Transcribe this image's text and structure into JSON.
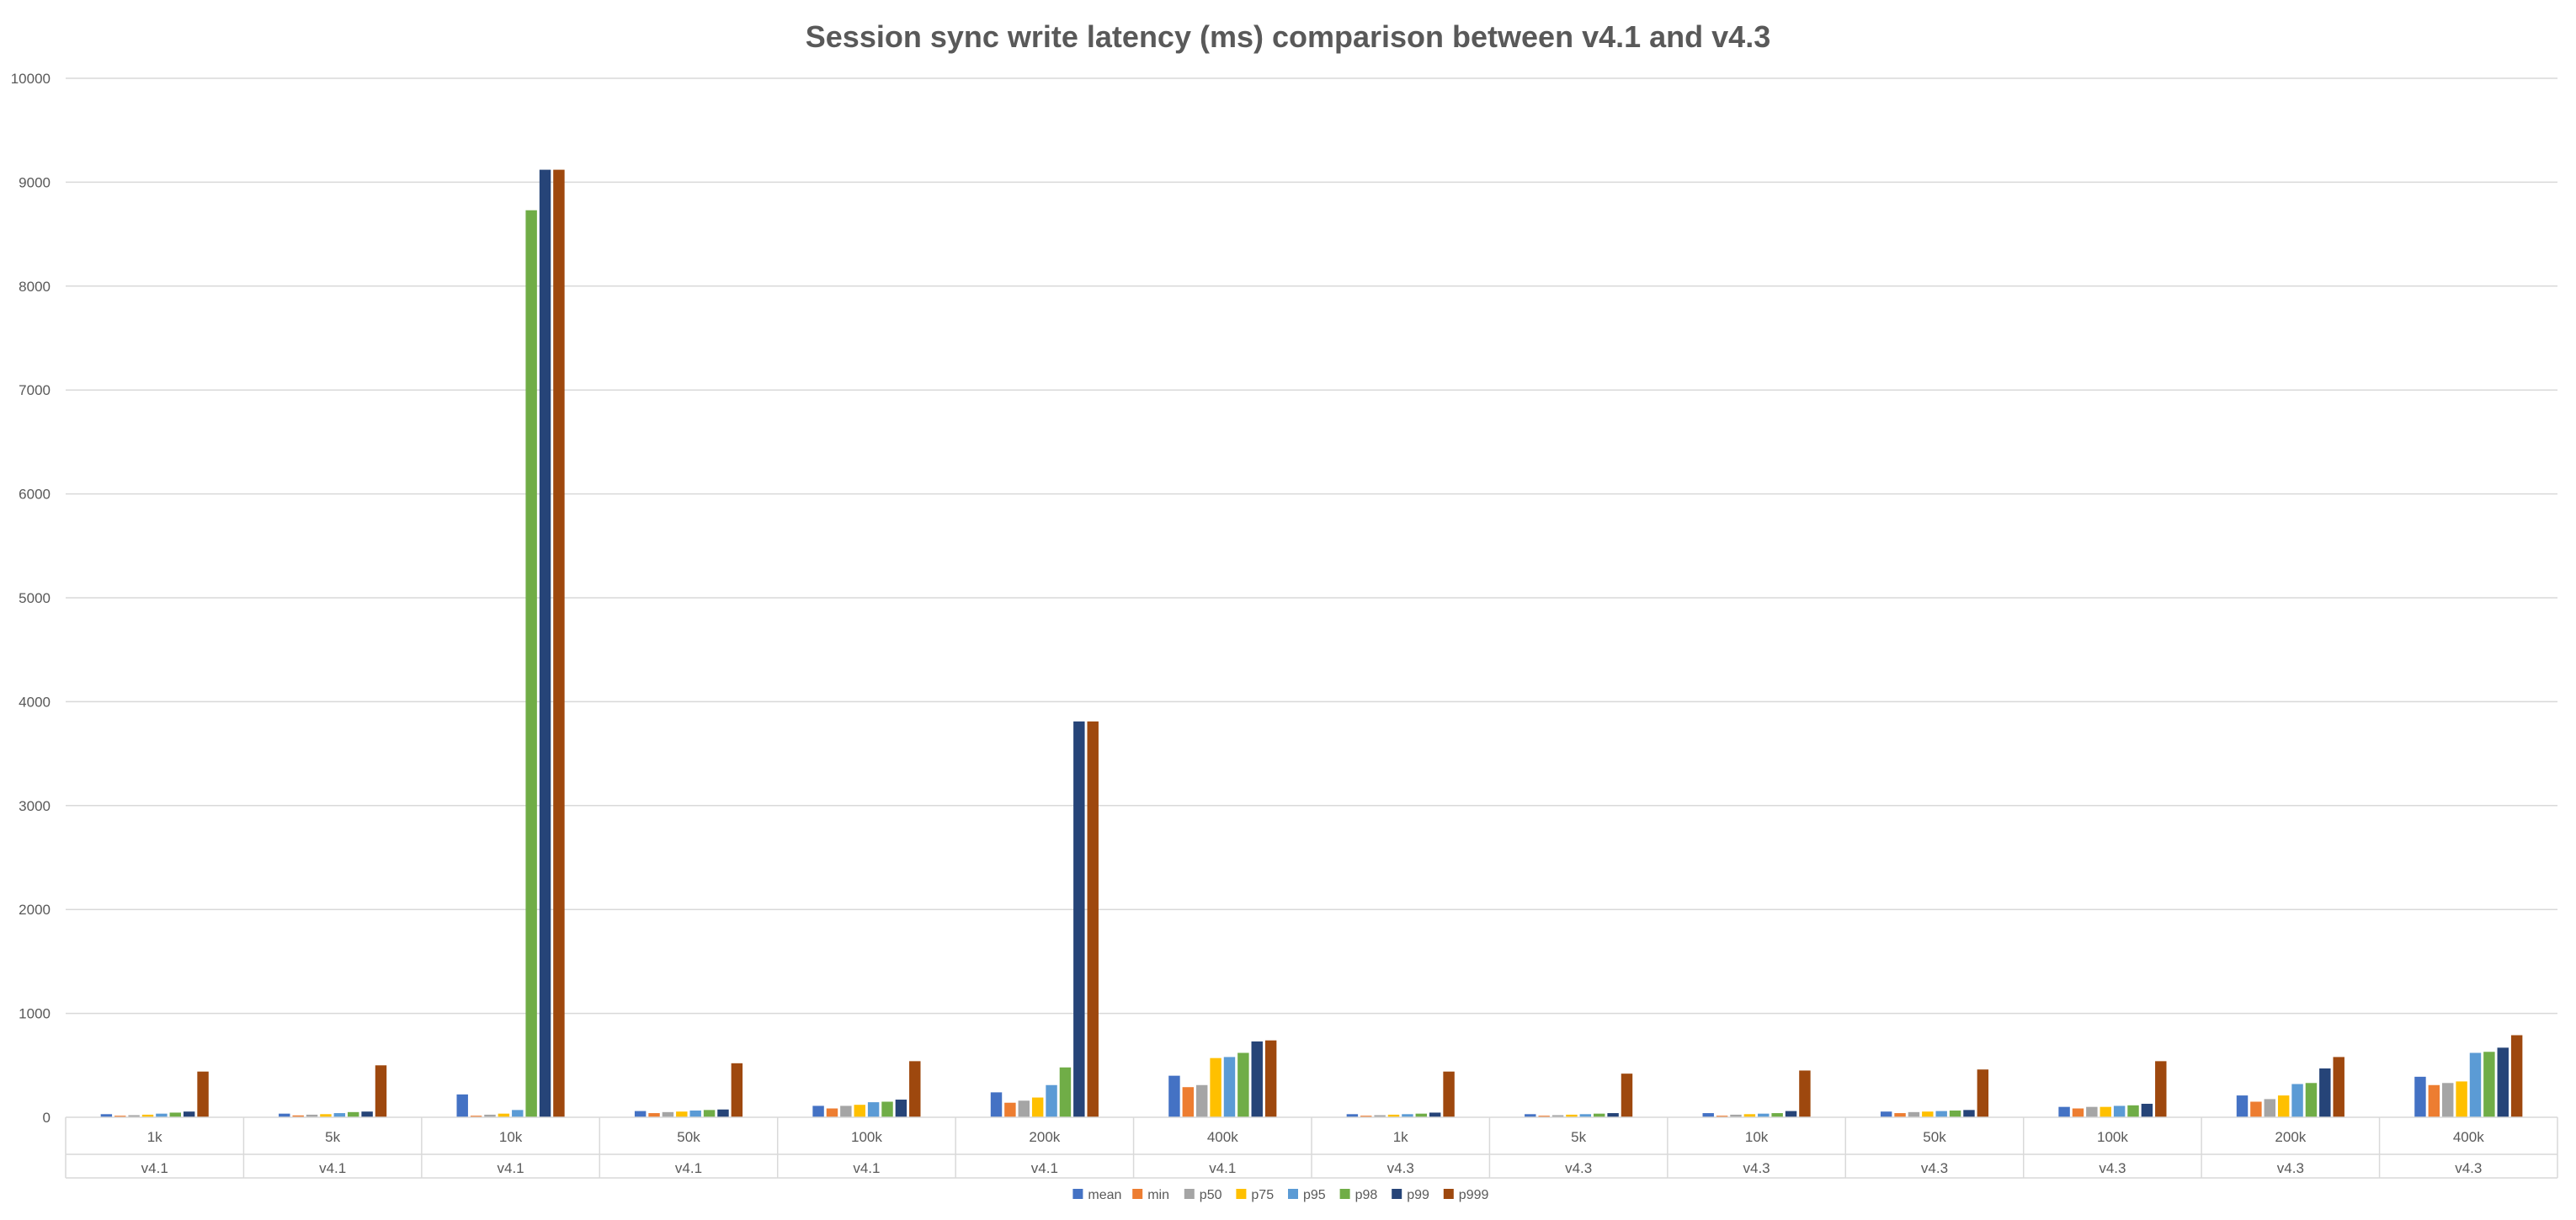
{
  "chart_data": {
    "type": "bar",
    "title": "Session sync write latency (ms) comparison between v4.1 and v4.3",
    "xlabel": "",
    "ylabel": "",
    "ylim": [
      0,
      10000
    ],
    "yticks": [
      0,
      1000,
      2000,
      3000,
      4000,
      5000,
      6000,
      7000,
      8000,
      9000,
      10000
    ],
    "grid": true,
    "legend_position": "bottom",
    "groups": [
      {
        "label": "v4.1",
        "categories": [
          "1k",
          "5k",
          "10k",
          "50k",
          "100k",
          "200k",
          "400k"
        ]
      },
      {
        "label": "v4.3",
        "categories": [
          "1k",
          "5k",
          "10k",
          "50k",
          "100k",
          "200k",
          "400k"
        ]
      }
    ],
    "categories": [
      "1k",
      "5k",
      "10k",
      "50k",
      "100k",
      "200k",
      "400k",
      "1k",
      "5k",
      "10k",
      "50k",
      "100k",
      "200k",
      "400k"
    ],
    "series": [
      {
        "name": "mean",
        "color": "#4472C4",
        "values": [
          30,
          35,
          220,
          60,
          110,
          240,
          400,
          30,
          30,
          40,
          55,
          100,
          210,
          390
        ]
      },
      {
        "name": "min",
        "color": "#ED7D31",
        "values": [
          15,
          18,
          15,
          40,
          85,
          140,
          290,
          15,
          15,
          15,
          40,
          85,
          150,
          310
        ]
      },
      {
        "name": "p50",
        "color": "#A5A5A5",
        "values": [
          20,
          25,
          25,
          50,
          110,
          160,
          310,
          20,
          20,
          25,
          50,
          100,
          175,
          330
        ]
      },
      {
        "name": "p75",
        "color": "#FFC000",
        "values": [
          25,
          30,
          35,
          55,
          120,
          190,
          570,
          25,
          25,
          30,
          55,
          100,
          210,
          345
        ]
      },
      {
        "name": "p95",
        "color": "#5B9BD5",
        "values": [
          35,
          40,
          70,
          65,
          145,
          310,
          580,
          30,
          30,
          35,
          60,
          110,
          320,
          620
        ]
      },
      {
        "name": "p98",
        "color": "#70AD47",
        "values": [
          45,
          50,
          8730,
          70,
          150,
          480,
          620,
          35,
          35,
          40,
          65,
          115,
          330,
          630
        ]
      },
      {
        "name": "p99",
        "color": "#264478",
        "values": [
          55,
          55,
          9120,
          75,
          170,
          3810,
          730,
          45,
          40,
          60,
          70,
          130,
          470,
          670
        ]
      },
      {
        "name": "p999",
        "color": "#9E480E",
        "values": [
          440,
          500,
          9120,
          520,
          540,
          3810,
          740,
          440,
          420,
          450,
          460,
          540,
          580,
          790
        ]
      }
    ]
  }
}
